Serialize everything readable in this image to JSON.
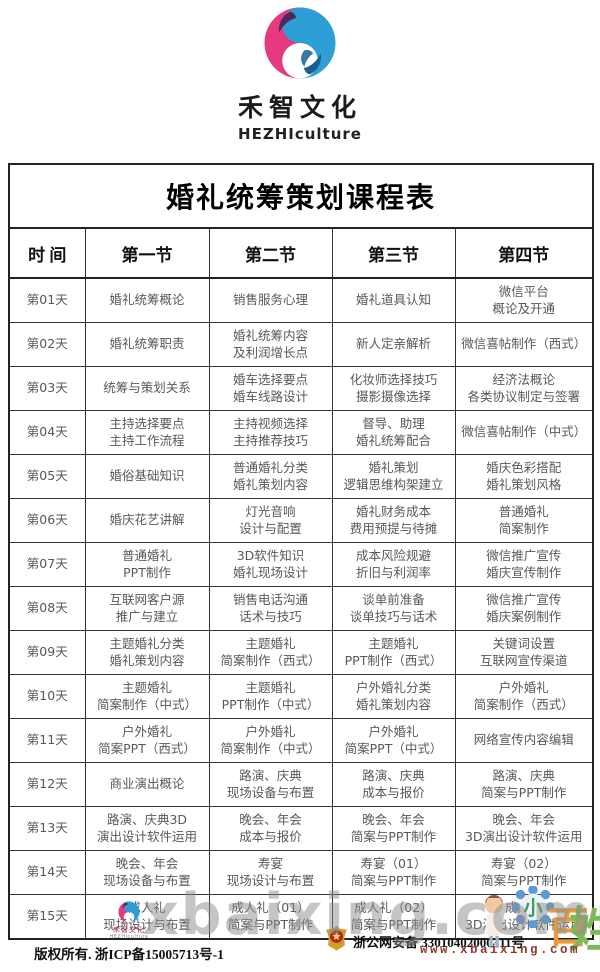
{
  "brand": {
    "name": "禾智文化",
    "subtitle": "HEZHIculture"
  },
  "colors": {
    "logo_pink": "#e7397f",
    "logo_purple": "#4e2a5a",
    "logo_blue": "#2d9fd6",
    "logo_blue_dark": "#1a5f93",
    "body_text": "#585858",
    "border": "#222222",
    "watermark_gray": "#8d8d8d",
    "mascot_orange": "#eb9a3c",
    "mascot_green": "#7cb85c"
  },
  "table": {
    "title": "婚礼统筹策划课程表",
    "headers": [
      "时  间",
      "第一节",
      "第二节",
      "第三节",
      "第四节"
    ],
    "rows": [
      {
        "day": "第01天",
        "cells": [
          "婚礼统筹概论",
          "销售服务心理",
          "婚礼道具认知",
          "微信平台\n概论及开通"
        ]
      },
      {
        "day": "第02天",
        "cells": [
          "婚礼统筹职责",
          "婚礼统筹内容\n及利润增长点",
          "新人定亲解析",
          "微信喜帖制作（西式）"
        ]
      },
      {
        "day": "第03天",
        "cells": [
          "统筹与策划关系",
          "婚车选择要点\n婚车线路设计",
          "化妆师选择技巧\n摄影摄像选择",
          "经济法概论\n各类协议制定与签署"
        ]
      },
      {
        "day": "第04天",
        "cells": [
          "主持选择要点\n主持工作流程",
          "主持视频选择\n主持推荐技巧",
          "督导、助理\n婚礼统筹配合",
          "微信喜帖制作（中式）"
        ]
      },
      {
        "day": "第05天",
        "cells": [
          "婚俗基础知识",
          "普通婚礼分类\n婚礼策划内容",
          "婚礼策划\n逻辑思维构架建立",
          "婚庆色彩搭配\n婚礼策划风格"
        ]
      },
      {
        "day": "第06天",
        "cells": [
          "婚庆花艺讲解",
          "灯光音响\n设计与配置",
          "婚礼财务成本\n费用预提与待摊",
          "普通婚礼\n简案制作"
        ]
      },
      {
        "day": "第07天",
        "cells": [
          "普通婚礼\nPPT制作",
          "3D软件知识\n婚礼现场设计",
          "成本风险规避\n折旧与利润率",
          "微信推广宣传\n婚庆宣传制作"
        ]
      },
      {
        "day": "第08天",
        "cells": [
          "互联网客户源\n推广与建立",
          "销售电话沟通\n话术与技巧",
          "谈单前准备\n谈单技巧与话术",
          "微信推广宣传\n婚庆案例制作"
        ]
      },
      {
        "day": "第09天",
        "cells": [
          "主题婚礼分类\n婚礼策划内容",
          "主题婚礼\n简案制作（西式）",
          "主题婚礼\nPPT制作（西式）",
          "关键词设置\n互联网宣传渠道"
        ]
      },
      {
        "day": "第10天",
        "cells": [
          "主题婚礼\n简案制作（中式）",
          "主题婚礼\nPPT制作（中式）",
          "户外婚礼分类\n婚礼策划内容",
          "户外婚礼\n简案制作（西式）"
        ]
      },
      {
        "day": "第11天",
        "cells": [
          "户外婚礼\n简案PPT（西式）",
          "户外婚礼\n简案制作（中式）",
          "户外婚礼\n简案PPT（中式）",
          "网络宣传内容编辑"
        ]
      },
      {
        "day": "第12天",
        "cells": [
          "商业演出概论",
          "路演、庆典\n现场设备与布置",
          "路演、庆典\n成本与报价",
          "路演、庆典\n简案与PPT制作"
        ]
      },
      {
        "day": "第13天",
        "cells": [
          "路演、庆典3D\n演出设计软件运用",
          "晚会、年会\n成本与报价",
          "晚会、年会\n简案与PPT制作",
          "晚会、年会\n3D演出设计软件运用"
        ]
      },
      {
        "day": "第14天",
        "cells": [
          "晚会、年会\n现场设备与布置",
          "寿宴\n现场设计与布置",
          "寿宴（01）\n简案与PPT制作",
          "寿宴（02）\n简案与PPT制作"
        ]
      },
      {
        "day": "第15天",
        "cells": [
          "成人礼\n现场设计与布置",
          "成人礼（01）\n简案与PPT制作",
          "成人礼（02）\n简案与PPT制作",
          "成人礼\n3D演出设计软件运用"
        ]
      }
    ]
  },
  "footer": {
    "brand_name": "禾智文化",
    "brand_subtitle": "HEZHIculture",
    "copyright": "版权所有. 浙ICP备15005713号-1",
    "security": "浙公网安备 33010402000311号"
  },
  "watermark": {
    "text": "xbaixing.com",
    "url": "www.xbaixing.com",
    "mascot_bai": "百",
    "mascot_xing": "姓",
    "mascot_xiao": "小"
  }
}
